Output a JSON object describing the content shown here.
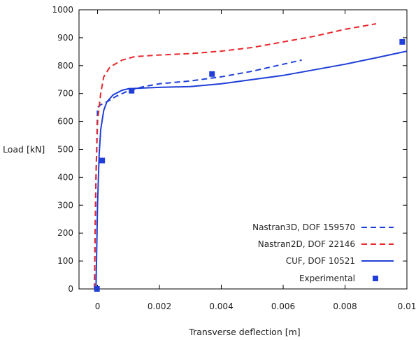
{
  "chart_data": {
    "type": "line",
    "title": "",
    "xlabel": "Transverse deflection [m]",
    "ylabel": "Load [kN]",
    "xlim": [
      -0.0006,
      0.01
    ],
    "ylim": [
      0,
      1000
    ],
    "xticks": [
      0,
      0.002,
      0.004,
      0.006,
      0.008,
      0.01
    ],
    "xtick_labels": [
      "0",
      "0.002",
      "0.004",
      "0.006",
      "0.008",
      "0.01"
    ],
    "yticks": [
      0,
      100,
      200,
      300,
      400,
      500,
      600,
      700,
      800,
      900,
      1000
    ],
    "ytick_labels": [
      "0",
      "100",
      "200",
      "300",
      "400",
      "500",
      "600",
      "700",
      "800",
      "900",
      "1000"
    ],
    "grid": false,
    "legend_position": "bottom-right",
    "series": [
      {
        "name": "Nastran3D, DOF 159570",
        "style": "dashed",
        "color": "#1f3fd8",
        "x": [
          -0.0001,
          -8e-05,
          -5e-05,
          -2e-05,
          0.0,
          0.0001,
          0.0003,
          0.0006,
          0.001,
          0.0015,
          0.002,
          0.003,
          0.004,
          0.005,
          0.006,
          0.0066
        ],
        "y": [
          0,
          200,
          400,
          550,
          650,
          660,
          670,
          690,
          710,
          725,
          735,
          745,
          760,
          780,
          805,
          820
        ]
      },
      {
        "name": "Nastran2D, DOF 22146",
        "style": "dashed",
        "color": "#e8272b",
        "x": [
          -0.0001,
          -5e-05,
          0.0,
          0.0001,
          0.0002,
          0.0004,
          0.0008,
          0.0012,
          0.002,
          0.003,
          0.004,
          0.005,
          0.006,
          0.007,
          0.008,
          0.009
        ],
        "y": [
          0,
          400,
          600,
          700,
          760,
          795,
          820,
          832,
          838,
          843,
          852,
          865,
          885,
          905,
          930,
          950
        ]
      },
      {
        "name": "CUF, DOF 10521",
        "style": "solid",
        "color": "#1f3fd8",
        "x": [
          -5e-05,
          0.0,
          5e-05,
          0.0001,
          0.0002,
          0.0003,
          0.0005,
          0.0008,
          0.001,
          0.0015,
          0.002,
          0.003,
          0.004,
          0.005,
          0.006,
          0.007,
          0.008,
          0.009,
          0.01
        ],
        "y": [
          0,
          300,
          480,
          570,
          640,
          670,
          695,
          712,
          717,
          720,
          722,
          725,
          735,
          750,
          765,
          785,
          805,
          828,
          852
        ]
      },
      {
        "name": "Experimental",
        "style": "markers",
        "color": "#1f3fd8",
        "x": [
          -2e-05,
          0.00015,
          0.0011,
          0.0037,
          0.00985
        ],
        "y": [
          0,
          460,
          710,
          770,
          885
        ]
      }
    ]
  }
}
